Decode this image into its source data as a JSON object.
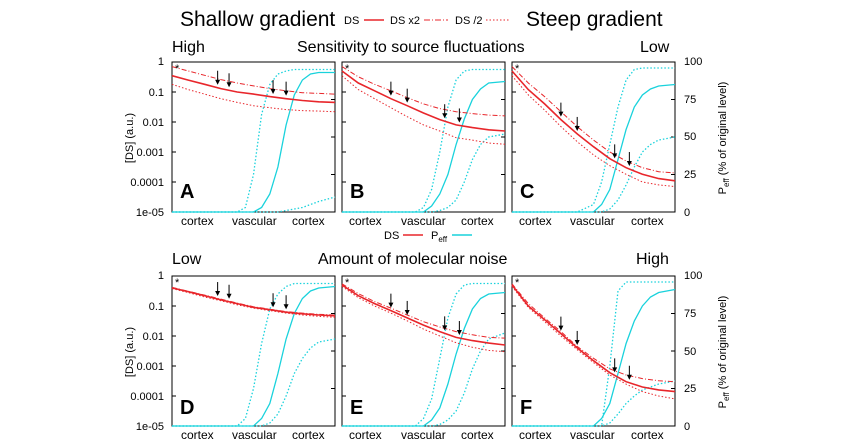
{
  "header": {
    "left_title": "Shallow gradient",
    "right_title": "Steep gradient",
    "legend": [
      {
        "label": "DS",
        "style": "solid"
      },
      {
        "label": "DS x2",
        "style": "dashdot"
      },
      {
        "label": "DS /2",
        "style": "dotted"
      }
    ]
  },
  "middle_legend": {
    "ds": "DS",
    "peff_main": "P",
    "peff_sub": "eff"
  },
  "colors": {
    "ds": "#e8262b",
    "peff": "#19d2dc",
    "black": "#000000"
  },
  "rows": [
    {
      "title": "Sensitivity to source fluctuations",
      "left": "High",
      "right": "Low"
    },
    {
      "title": "Amount of molecular noise",
      "left": "Low",
      "right": "High"
    }
  ],
  "axes": {
    "ylabel": "[DS] (a.u.)",
    "y2label_main": "P",
    "y2label_sub": "eff",
    "y2label_rest": " (% of original level)",
    "yticks": [
      "1",
      "0.1",
      "0.01",
      "0.001",
      "0.0001",
      "1e-05"
    ],
    "y2ticks": [
      "100",
      "75",
      "50",
      "25",
      "0"
    ],
    "xcats": [
      "cortex",
      "vascular",
      "cortex"
    ],
    "star": "*"
  },
  "chart_data": [
    {
      "type": "line",
      "panel": "A",
      "yscale": "log",
      "ylim": [
        1e-05,
        1
      ],
      "y2lim": [
        0,
        100
      ],
      "x": [
        0,
        0.1,
        0.2,
        0.3,
        0.4,
        0.5,
        0.6,
        0.7,
        0.8,
        0.9,
        1
      ],
      "series": [
        {
          "name": "DS",
          "values": [
            0.35,
            0.25,
            0.18,
            0.13,
            0.1,
            0.085,
            0.07,
            0.06,
            0.052,
            0.047,
            0.045
          ]
        },
        {
          "name": "DS x2",
          "values": [
            0.7,
            0.5,
            0.36,
            0.26,
            0.2,
            0.16,
            0.13,
            0.11,
            0.095,
            0.09,
            0.085
          ]
        },
        {
          "name": "DS /2",
          "values": [
            0.18,
            0.12,
            0.085,
            0.06,
            0.045,
            0.035,
            0.03,
            0.026,
            0.024,
            0.023,
            0.022
          ]
        }
      ],
      "peff": {
        "x": [
          0,
          0.4,
          0.45,
          0.5,
          0.55,
          0.6,
          0.65,
          0.7,
          0.75,
          0.8,
          0.85,
          0.9,
          1
        ],
        "solid": [
          0,
          0,
          0,
          0,
          3,
          12,
          30,
          58,
          78,
          88,
          92,
          93,
          93
        ],
        "dotted_a": [
          0,
          0,
          3,
          25,
          65,
          85,
          92,
          94,
          95,
          95,
          95,
          95,
          95
        ],
        "dotted_b": [
          0,
          0,
          0,
          0,
          0,
          0,
          0,
          1,
          2,
          3,
          5,
          7,
          10
        ]
      },
      "arrows_x": [
        0.28,
        0.35,
        0.62,
        0.7
      ]
    },
    {
      "type": "line",
      "panel": "B",
      "yscale": "log",
      "ylim": [
        1e-05,
        1
      ],
      "y2lim": [
        0,
        100
      ],
      "x": [
        0,
        0.1,
        0.2,
        0.3,
        0.4,
        0.5,
        0.6,
        0.7,
        0.8,
        0.9,
        1
      ],
      "series": [
        {
          "name": "DS",
          "values": [
            0.5,
            0.2,
            0.11,
            0.06,
            0.035,
            0.02,
            0.012,
            0.008,
            0.0065,
            0.0055,
            0.005
          ]
        },
        {
          "name": "DS x2",
          "values": [
            0.7,
            0.32,
            0.18,
            0.11,
            0.065,
            0.04,
            0.028,
            0.022,
            0.019,
            0.017,
            0.016
          ]
        },
        {
          "name": "DS /2",
          "values": [
            0.35,
            0.12,
            0.06,
            0.03,
            0.015,
            0.008,
            0.005,
            0.003,
            0.0025,
            0.002,
            0.0018
          ]
        }
      ],
      "peff": {
        "x": [
          0,
          0.45,
          0.5,
          0.55,
          0.6,
          0.65,
          0.7,
          0.75,
          0.8,
          0.85,
          0.9,
          1
        ],
        "solid": [
          0,
          0,
          0,
          4,
          12,
          25,
          45,
          62,
          75,
          82,
          86,
          87
        ],
        "dotted_a": [
          0,
          0,
          3,
          15,
          40,
          70,
          88,
          94,
          95,
          95,
          95,
          95
        ],
        "dotted_b": [
          0,
          0,
          0,
          0,
          1,
          3,
          8,
          20,
          35,
          45,
          50,
          52
        ]
      },
      "arrows_x": [
        0.3,
        0.4,
        0.63,
        0.72
      ]
    },
    {
      "type": "line",
      "panel": "C",
      "yscale": "log",
      "ylim": [
        1e-05,
        1
      ],
      "y2lim": [
        0,
        100
      ],
      "x": [
        0,
        0.1,
        0.2,
        0.3,
        0.4,
        0.5,
        0.6,
        0.7,
        0.8,
        0.9,
        1
      ],
      "series": [
        {
          "name": "DS",
          "values": [
            0.5,
            0.12,
            0.04,
            0.012,
            0.004,
            0.0015,
            0.0006,
            0.0003,
            0.00018,
            0.00013,
            0.00011
          ]
        },
        {
          "name": "DS x2",
          "values": [
            0.7,
            0.2,
            0.07,
            0.022,
            0.007,
            0.0025,
            0.001,
            0.0005,
            0.0003,
            0.00022,
            0.0002
          ]
        },
        {
          "name": "DS /2",
          "values": [
            0.35,
            0.08,
            0.025,
            0.007,
            0.0022,
            0.0008,
            0.00035,
            0.00018,
            0.0001,
            8e-05,
            7e-05
          ]
        }
      ],
      "peff": {
        "x": [
          0,
          0.4,
          0.5,
          0.55,
          0.6,
          0.65,
          0.7,
          0.75,
          0.8,
          0.85,
          0.9,
          1
        ],
        "solid": [
          0,
          0,
          0,
          5,
          15,
          35,
          55,
          70,
          78,
          82,
          84,
          85
        ],
        "dotted_a": [
          0,
          0,
          5,
          20,
          45,
          70,
          88,
          95,
          96,
          96,
          96,
          96
        ],
        "dotted_b": [
          0,
          0,
          0,
          0,
          2,
          8,
          18,
          30,
          40,
          45,
          48,
          50
        ]
      },
      "arrows_x": [
        0.3,
        0.4,
        0.63,
        0.72
      ]
    },
    {
      "type": "line",
      "panel": "D",
      "yscale": "log",
      "ylim": [
        1e-05,
        1
      ],
      "y2lim": [
        0,
        100
      ],
      "x": [
        0,
        0.1,
        0.2,
        0.3,
        0.4,
        0.5,
        0.6,
        0.7,
        0.8,
        0.9,
        1
      ],
      "series": [
        {
          "name": "DS",
          "values": [
            0.4,
            0.3,
            0.22,
            0.16,
            0.12,
            0.09,
            0.075,
            0.062,
            0.055,
            0.05,
            0.047
          ]
        },
        {
          "name": "DS x2",
          "values": [
            0.42,
            0.31,
            0.23,
            0.17,
            0.125,
            0.095,
            0.078,
            0.065,
            0.058,
            0.053,
            0.05
          ]
        },
        {
          "name": "DS /2",
          "values": [
            0.38,
            0.28,
            0.2,
            0.15,
            0.11,
            0.085,
            0.07,
            0.058,
            0.05,
            0.045,
            0.042
          ]
        }
      ],
      "peff": {
        "x": [
          0,
          0.4,
          0.45,
          0.5,
          0.55,
          0.6,
          0.65,
          0.7,
          0.75,
          0.8,
          0.85,
          0.9,
          1
        ],
        "solid": [
          0,
          0,
          0,
          0,
          5,
          15,
          35,
          58,
          75,
          85,
          90,
          92,
          93
        ],
        "dotted_a": [
          0,
          0,
          5,
          25,
          55,
          78,
          88,
          93,
          95,
          95,
          95,
          95,
          95
        ],
        "dotted_b": [
          0,
          0,
          0,
          0,
          0,
          2,
          8,
          20,
          35,
          45,
          52,
          56,
          58
        ]
      },
      "arrows_x": [
        0.28,
        0.35,
        0.62,
        0.7
      ]
    },
    {
      "type": "line",
      "panel": "E",
      "yscale": "log",
      "ylim": [
        1e-05,
        1
      ],
      "y2lim": [
        0,
        100
      ],
      "x": [
        0,
        0.1,
        0.2,
        0.3,
        0.4,
        0.5,
        0.6,
        0.7,
        0.8,
        0.9,
        1
      ],
      "series": [
        {
          "name": "DS",
          "values": [
            0.5,
            0.22,
            0.12,
            0.07,
            0.04,
            0.023,
            0.014,
            0.009,
            0.007,
            0.0058,
            0.005
          ]
        },
        {
          "name": "DS x2",
          "values": [
            0.55,
            0.26,
            0.14,
            0.085,
            0.05,
            0.03,
            0.02,
            0.014,
            0.011,
            0.009,
            0.0085
          ]
        },
        {
          "name": "DS /2",
          "values": [
            0.45,
            0.19,
            0.1,
            0.058,
            0.032,
            0.017,
            0.01,
            0.006,
            0.0042,
            0.0033,
            0.003
          ]
        }
      ],
      "peff": {
        "x": [
          0,
          0.45,
          0.5,
          0.55,
          0.6,
          0.65,
          0.7,
          0.75,
          0.8,
          0.85,
          0.9,
          1
        ],
        "solid": [
          0,
          0,
          0,
          4,
          12,
          28,
          48,
          65,
          78,
          85,
          88,
          89
        ],
        "dotted_a": [
          0,
          0,
          5,
          18,
          45,
          72,
          88,
          94,
          95,
          95,
          95,
          95
        ],
        "dotted_b": [
          0,
          0,
          0,
          0,
          1,
          4,
          10,
          22,
          38,
          50,
          58,
          62
        ]
      },
      "arrows_x": [
        0.3,
        0.4,
        0.63,
        0.72
      ]
    },
    {
      "type": "line",
      "panel": "F",
      "yscale": "log",
      "ylim": [
        1e-05,
        1
      ],
      "y2lim": [
        0,
        100
      ],
      "x": [
        0,
        0.1,
        0.2,
        0.3,
        0.4,
        0.5,
        0.6,
        0.7,
        0.8,
        0.9,
        1
      ],
      "series": [
        {
          "name": "DS",
          "values": [
            0.5,
            0.1,
            0.035,
            0.012,
            0.004,
            0.0015,
            0.0006,
            0.0003,
            0.0002,
            0.00016,
            0.00014
          ]
        },
        {
          "name": "DS x2",
          "values": [
            0.55,
            0.12,
            0.04,
            0.014,
            0.0045,
            0.0018,
            0.0008,
            0.0005,
            0.00038,
            0.00032,
            0.0003
          ]
        },
        {
          "name": "DS /2",
          "values": [
            0.45,
            0.09,
            0.03,
            0.01,
            0.0035,
            0.0013,
            0.0005,
            0.00025,
            0.00014,
            0.0001,
            8e-05
          ]
        }
      ],
      "peff": {
        "x": [
          0,
          0.4,
          0.5,
          0.55,
          0.6,
          0.65,
          0.7,
          0.75,
          0.8,
          0.85,
          0.9,
          1
        ],
        "solid": [
          0,
          0,
          0,
          5,
          15,
          35,
          55,
          70,
          80,
          86,
          89,
          91
        ],
        "dotted_a": [
          0,
          0,
          0,
          0,
          40,
          90,
          96,
          96,
          96,
          96,
          96,
          96
        ],
        "dotted_b": [
          0,
          0,
          0,
          0,
          2,
          8,
          15,
          20,
          24,
          26,
          28,
          30
        ]
      },
      "arrows_x": [
        0.3,
        0.4,
        0.63,
        0.72
      ]
    }
  ]
}
